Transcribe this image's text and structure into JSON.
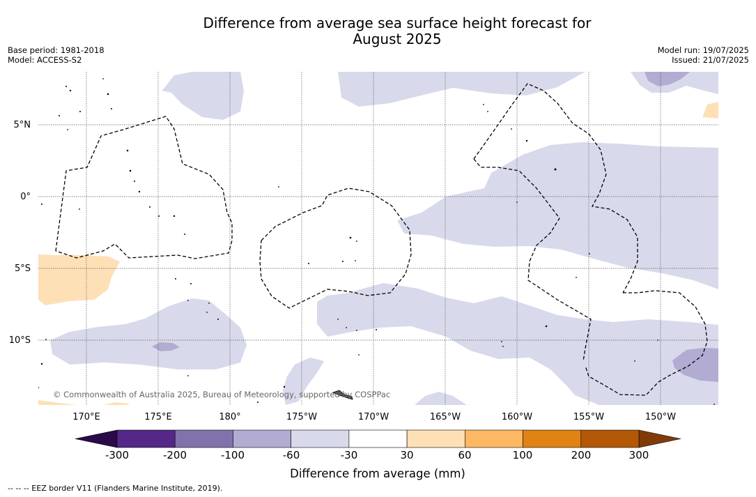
{
  "title_line1": "Difference from average sea surface height forecast for",
  "title_line2": "August 2025",
  "meta_left": {
    "base_period": "Base period: 1981-2018",
    "model": "Model: ACCESS-S2"
  },
  "meta_right": {
    "model_run": "Model run: 19/07/2025",
    "issued": "Issued: 21/07/2025"
  },
  "map": {
    "lon_labels": [
      "170°E",
      "175°E",
      "180°",
      "175°W",
      "170°W",
      "165°W",
      "160°W",
      "155°W",
      "150°W"
    ],
    "lat_labels": [
      "5°N",
      "0°",
      "5°S",
      "10°S"
    ],
    "copyright": "© Commonwealth of Australia 2025, Bureau of Meteorology, supported by COSPPac"
  },
  "colorbar": {
    "tick_labels": [
      "-300",
      "-200",
      "-100",
      "-60",
      "-30",
      "30",
      "60",
      "100",
      "200",
      "300"
    ],
    "colors": {
      "below": "#2a0a4a",
      "bins": [
        "#542788",
        "#8073ac",
        "#b2abd2",
        "#d8daeb",
        "#ffffff",
        "#fee0b6",
        "#fdb863",
        "#e08214",
        "#b35806"
      ],
      "above": "#7f3b08"
    },
    "title": "Difference from average (mm)"
  },
  "footer": "-- -- -- EEZ border V11 (Flanders Marine Institute, 2019)."
}
